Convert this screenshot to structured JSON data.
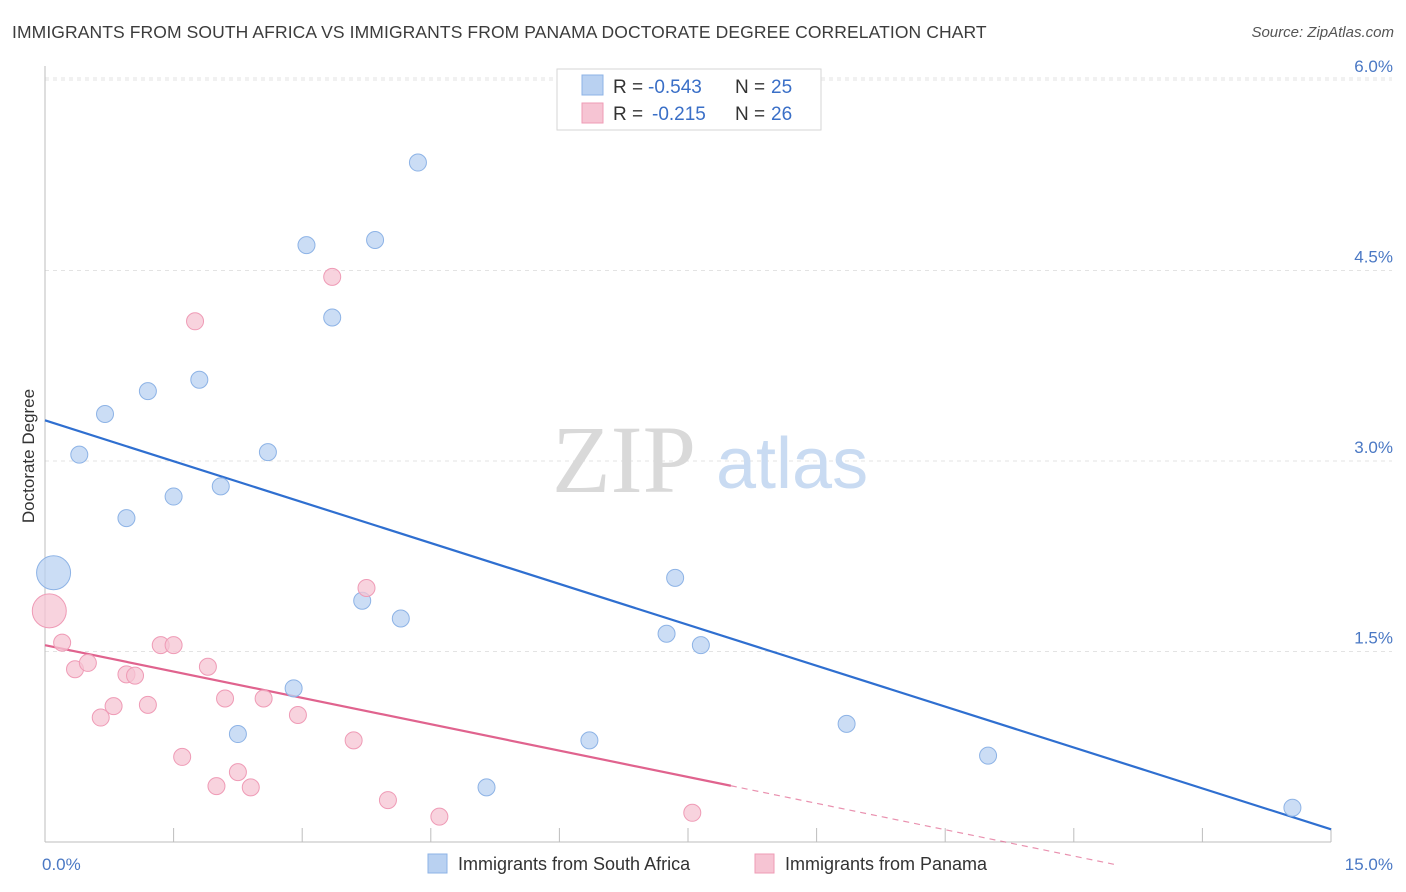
{
  "title": "IMMIGRANTS FROM SOUTH AFRICA VS IMMIGRANTS FROM PANAMA DOCTORATE DEGREE CORRELATION CHART",
  "source": "Source: ZipAtlas.com",
  "colors": {
    "blue_fill": "#b9d1f1",
    "blue_stroke": "#8db3e6",
    "blue_line": "#2f6fd0",
    "pink_fill": "#f6c4d3",
    "pink_stroke": "#ef9bb6",
    "pink_line": "#e0638e",
    "grid": "#e3e3e3",
    "tick_label": "#4a78c4"
  },
  "legend": {
    "r_label": "R =",
    "n_label": "N =",
    "rows": [
      {
        "r": "-0.543",
        "n": "25"
      },
      {
        "r": "-0.215",
        "n": "26"
      }
    ]
  },
  "watermark": {
    "zip": "ZIP",
    "atlas": "atlas"
  },
  "chart_data": {
    "type": "scatter",
    "xlabel": "",
    "ylabel": "Doctorate Degree",
    "xlim": [
      0,
      15
    ],
    "ylim": [
      0,
      6
    ],
    "x_ticks": [
      "0.0%",
      "15.0%"
    ],
    "y_ticks": [
      {
        "value": 1.5,
        "label": "1.5%"
      },
      {
        "value": 3.0,
        "label": "3.0%"
      },
      {
        "value": 4.5,
        "label": "4.5%"
      },
      {
        "value": 6.0,
        "label": "6.0%"
      }
    ],
    "series": [
      {
        "name": "Immigrants from South Africa",
        "color": "blue",
        "trend": {
          "x0": 0,
          "y0": 3.32,
          "x1": 15,
          "y1": 0.1,
          "solid_until": 15
        },
        "points": [
          {
            "x": 0.1,
            "y": 2.12,
            "big": true
          },
          {
            "x": 0.4,
            "y": 3.05
          },
          {
            "x": 0.7,
            "y": 3.37
          },
          {
            "x": 0.95,
            "y": 2.55
          },
          {
            "x": 1.2,
            "y": 3.55
          },
          {
            "x": 1.5,
            "y": 2.72
          },
          {
            "x": 1.8,
            "y": 3.64
          },
          {
            "x": 2.05,
            "y": 2.8
          },
          {
            "x": 2.25,
            "y": 0.85
          },
          {
            "x": 2.6,
            "y": 3.07
          },
          {
            "x": 2.9,
            "y": 1.21
          },
          {
            "x": 3.05,
            "y": 4.7
          },
          {
            "x": 3.35,
            "y": 4.13
          },
          {
            "x": 3.7,
            "y": 1.9
          },
          {
            "x": 3.85,
            "y": 4.74
          },
          {
            "x": 4.15,
            "y": 1.76
          },
          {
            "x": 4.35,
            "y": 5.35
          },
          {
            "x": 5.15,
            "y": 0.43
          },
          {
            "x": 6.35,
            "y": 0.8
          },
          {
            "x": 7.25,
            "y": 1.64
          },
          {
            "x": 7.35,
            "y": 2.08
          },
          {
            "x": 7.65,
            "y": 1.55
          },
          {
            "x": 9.35,
            "y": 0.93
          },
          {
            "x": 11.0,
            "y": 0.68
          },
          {
            "x": 14.55,
            "y": 0.27
          }
        ]
      },
      {
        "name": "Immigrants from Panama",
        "color": "pink",
        "trend": {
          "x0": 0,
          "y0": 1.55,
          "x1": 12.5,
          "y1": -0.18,
          "solid_until": 8.0
        },
        "points": [
          {
            "x": 0.05,
            "y": 1.82,
            "big": true
          },
          {
            "x": 0.2,
            "y": 1.57
          },
          {
            "x": 0.35,
            "y": 1.36
          },
          {
            "x": 0.5,
            "y": 1.41
          },
          {
            "x": 0.65,
            "y": 0.98
          },
          {
            "x": 0.8,
            "y": 1.07
          },
          {
            "x": 0.95,
            "y": 1.32
          },
          {
            "x": 1.05,
            "y": 1.31
          },
          {
            "x": 1.2,
            "y": 1.08
          },
          {
            "x": 1.35,
            "y": 1.55
          },
          {
            "x": 1.5,
            "y": 1.55
          },
          {
            "x": 1.6,
            "y": 0.67
          },
          {
            "x": 1.75,
            "y": 4.1
          },
          {
            "x": 1.9,
            "y": 1.38
          },
          {
            "x": 2.0,
            "y": 0.44
          },
          {
            "x": 2.1,
            "y": 1.13
          },
          {
            "x": 2.25,
            "y": 0.55
          },
          {
            "x": 2.4,
            "y": 0.43
          },
          {
            "x": 2.55,
            "y": 1.13
          },
          {
            "x": 2.95,
            "y": 1.0
          },
          {
            "x": 3.35,
            "y": 4.45
          },
          {
            "x": 3.6,
            "y": 0.8
          },
          {
            "x": 3.75,
            "y": 2.0
          },
          {
            "x": 4.0,
            "y": 0.33
          },
          {
            "x": 4.6,
            "y": 0.2
          },
          {
            "x": 7.55,
            "y": 0.23
          }
        ]
      }
    ]
  }
}
